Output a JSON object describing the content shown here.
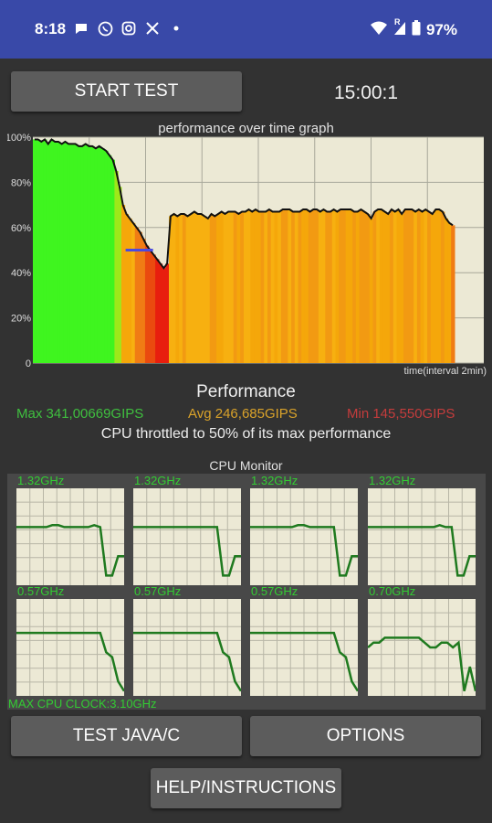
{
  "status_bar": {
    "time": "8:18",
    "battery": "97%",
    "network_tag": "R",
    "app_icons": [
      "chat-bubble-icon",
      "whatsapp-icon",
      "instagram-icon",
      "x-icon",
      "dot-icon"
    ],
    "right_icons": [
      "wifi-icon",
      "signal-icon",
      "battery-icon"
    ]
  },
  "controls": {
    "start_label": "START TEST",
    "timer": "15:00:1"
  },
  "graph": {
    "title": "performance over time graph",
    "y_ticks": [
      "100%",
      "80%",
      "60%",
      "40%",
      "20%",
      "0"
    ],
    "x_label": "time(interval 2min)"
  },
  "performance": {
    "title": "Performance",
    "max": "Max 341,00669GIPS",
    "avg": "Avg 246,685GIPS",
    "min": "Min 145,550GIPS",
    "throttle_text": "CPU throttled to 50% of its max performance",
    "colors": {
      "max": "#3fbf3f",
      "avg": "#d9a22a",
      "min": "#c43c3c"
    }
  },
  "cpu_monitor": {
    "title": "CPU Monitor",
    "cores": [
      {
        "freq": "1.32GHz",
        "levels": [
          0.6,
          0.6,
          0.6,
          0.6,
          0.6,
          0.6,
          0.62,
          0.62,
          0.6,
          0.6,
          0.6,
          0.6,
          0.6,
          0.62,
          0.6,
          0.1,
          0.1,
          0.3,
          0.3
        ]
      },
      {
        "freq": "1.32GHz",
        "levels": [
          0.6,
          0.6,
          0.6,
          0.6,
          0.6,
          0.6,
          0.6,
          0.6,
          0.6,
          0.6,
          0.6,
          0.6,
          0.6,
          0.6,
          0.6,
          0.1,
          0.1,
          0.3,
          0.3
        ]
      },
      {
        "freq": "1.32GHz",
        "levels": [
          0.6,
          0.6,
          0.6,
          0.6,
          0.6,
          0.6,
          0.6,
          0.6,
          0.62,
          0.62,
          0.6,
          0.6,
          0.6,
          0.6,
          0.6,
          0.1,
          0.1,
          0.3,
          0.3
        ]
      },
      {
        "freq": "1.32GHz",
        "levels": [
          0.6,
          0.6,
          0.6,
          0.6,
          0.6,
          0.6,
          0.6,
          0.6,
          0.6,
          0.6,
          0.6,
          0.6,
          0.62,
          0.6,
          0.6,
          0.1,
          0.1,
          0.3,
          0.3
        ]
      },
      {
        "freq": "0.57GHz",
        "levels": [
          0.65,
          0.65,
          0.65,
          0.65,
          0.65,
          0.65,
          0.65,
          0.65,
          0.65,
          0.65,
          0.65,
          0.65,
          0.65,
          0.65,
          0.65,
          0.45,
          0.4,
          0.15,
          0.05
        ]
      },
      {
        "freq": "0.57GHz",
        "levels": [
          0.65,
          0.65,
          0.65,
          0.65,
          0.65,
          0.65,
          0.65,
          0.65,
          0.65,
          0.65,
          0.65,
          0.65,
          0.65,
          0.65,
          0.65,
          0.45,
          0.4,
          0.15,
          0.05
        ]
      },
      {
        "freq": "0.57GHz",
        "levels": [
          0.65,
          0.65,
          0.65,
          0.65,
          0.65,
          0.65,
          0.65,
          0.65,
          0.65,
          0.65,
          0.65,
          0.65,
          0.65,
          0.65,
          0.65,
          0.45,
          0.4,
          0.15,
          0.05
        ]
      },
      {
        "freq": "0.70GHz",
        "levels": [
          0.5,
          0.55,
          0.55,
          0.6,
          0.6,
          0.6,
          0.6,
          0.6,
          0.6,
          0.6,
          0.55,
          0.5,
          0.5,
          0.55,
          0.55,
          0.5,
          0.55,
          0.05,
          0.3,
          0.05
        ]
      }
    ],
    "max_clock": "MAX CPU CLOCK:3.10GHz"
  },
  "buttons": {
    "test_java": "TEST JAVA/C",
    "options": "OPTIONS",
    "help": "HELP/INSTRUCTIONS"
  },
  "chart_data": {
    "type": "area",
    "title": "performance over time graph",
    "xlabel": "time(interval 2min)",
    "ylabel": "",
    "ylim": [
      0,
      100
    ],
    "yticks": [
      0,
      20,
      40,
      60,
      80,
      100
    ],
    "grid": true,
    "series": [
      {
        "values": [
          99,
          99,
          98,
          99,
          97,
          99,
          98,
          98,
          97,
          98,
          97,
          97,
          97,
          96,
          96,
          97,
          96,
          96,
          95,
          96,
          95,
          94,
          92,
          90,
          85,
          78,
          70,
          66,
          64,
          62,
          60,
          58,
          55,
          52,
          50,
          48,
          46,
          44,
          42,
          44,
          65,
          66,
          65,
          66,
          66,
          65,
          66,
          67,
          66,
          66,
          65,
          64,
          66,
          65,
          66,
          67,
          66,
          67,
          67,
          67,
          66,
          67,
          67,
          68,
          67,
          68,
          67,
          67,
          67,
          68,
          67,
          67,
          67,
          68,
          68,
          68,
          67,
          67,
          67,
          68,
          68,
          67,
          68,
          68,
          67,
          68,
          67,
          67,
          68,
          67,
          68,
          68,
          68,
          68,
          67,
          67,
          68,
          67,
          66,
          64,
          67,
          68,
          68,
          67,
          66,
          68,
          67,
          68,
          66,
          68,
          68,
          68,
          67,
          68,
          67,
          68,
          67,
          66,
          68,
          68,
          67,
          64,
          62,
          61
        ]
      }
    ],
    "avg_marker": 50
  }
}
